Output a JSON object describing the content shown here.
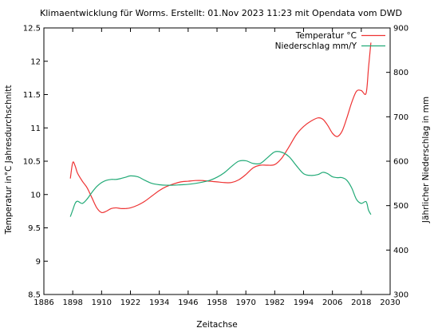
{
  "chart_data": {
    "type": "line",
    "title": "Klimaentwicklung für Worms. Erstellt: 01.Nov 2023 11:23 mit Opendata vom DWD",
    "xlabel": "Zeitachse",
    "ylabel": "Temperatur in°C Jahresdurchschnitt",
    "y2label": "Jährlicher Niederschlag in mm",
    "xlim": [
      1886,
      2030
    ],
    "ylim": [
      8.5,
      12.5
    ],
    "y2lim": [
      300,
      900
    ],
    "x_ticks": [
      "1886",
      "1898",
      "1910",
      "1922",
      "1934",
      "1946",
      "1958",
      "1970",
      "1982",
      "1994",
      "2006",
      "2018",
      "2030"
    ],
    "y_ticks": [
      "8.5",
      "9",
      "9.5",
      "10",
      "10.5",
      "11",
      "11.5",
      "12",
      "12.5"
    ],
    "y2_ticks": [
      "300",
      "400",
      "500",
      "600",
      "700",
      "800",
      "900"
    ],
    "grid": false,
    "legend_position": "top-right",
    "series": [
      {
        "name": "Temperatur °C",
        "axis": "left",
        "color": "#ee3333",
        "x": [
          1897,
          1898,
          1899,
          1900,
          1902,
          1904,
          1906,
          1908,
          1910,
          1912,
          1914,
          1916,
          1918,
          1920,
          1922,
          1925,
          1928,
          1931,
          1934,
          1937,
          1940,
          1943,
          1946,
          1949,
          1952,
          1955,
          1958,
          1961,
          1964,
          1967,
          1970,
          1973,
          1976,
          1979,
          1982,
          1985,
          1988,
          1991,
          1994,
          1997,
          2000,
          2002,
          2004,
          2006,
          2008,
          2010,
          2012,
          2014,
          2016,
          2018,
          2020,
          2021,
          2022
        ],
        "values": [
          10.24,
          10.48,
          10.43,
          10.32,
          10.2,
          10.1,
          9.95,
          9.8,
          9.73,
          9.75,
          9.79,
          9.8,
          9.79,
          9.79,
          9.8,
          9.84,
          9.9,
          9.98,
          10.06,
          10.12,
          10.16,
          10.19,
          10.2,
          10.21,
          10.21,
          10.2,
          10.19,
          10.18,
          10.18,
          10.22,
          10.3,
          10.4,
          10.44,
          10.44,
          10.45,
          10.55,
          10.72,
          10.9,
          11.02,
          11.1,
          11.15,
          11.13,
          11.04,
          10.92,
          10.87,
          10.95,
          11.15,
          11.38,
          11.55,
          11.56,
          11.52,
          11.9,
          12.28
        ]
      },
      {
        "name": "Niederschlag  mm/Y",
        "axis": "right",
        "color": "#22aa77",
        "x": [
          1897,
          1898,
          1899,
          1900,
          1902,
          1904,
          1906,
          1908,
          1910,
          1912,
          1914,
          1916,
          1918,
          1920,
          1922,
          1925,
          1928,
          1931,
          1934,
          1937,
          1940,
          1943,
          1946,
          1949,
          1952,
          1955,
          1958,
          1961,
          1964,
          1967,
          1970,
          1973,
          1976,
          1979,
          1982,
          1985,
          1988,
          1991,
          1994,
          1997,
          2000,
          2002,
          2004,
          2006,
          2008,
          2010,
          2012,
          2014,
          2016,
          2018,
          2020,
          2021,
          2022
        ],
        "values": [
          475,
          490,
          505,
          510,
          505,
          515,
          530,
          543,
          552,
          557,
          559,
          559,
          561,
          564,
          567,
          565,
          557,
          550,
          547,
          546,
          546,
          547,
          548,
          550,
          553,
          557,
          564,
          574,
          588,
          600,
          601,
          595,
          595,
          608,
          621,
          620,
          610,
          590,
          572,
          568,
          570,
          575,
          572,
          565,
          563,
          563,
          557,
          540,
          514,
          505,
          509,
          490,
          480
        ]
      }
    ]
  }
}
